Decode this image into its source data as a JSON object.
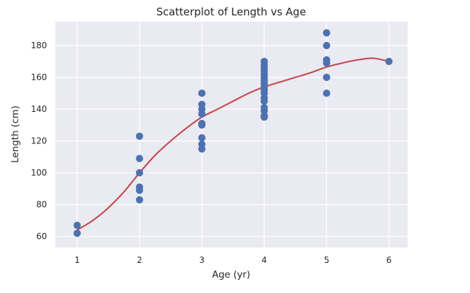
{
  "chart_data": {
    "type": "scatter",
    "title": "Scatterplot of Length vs Age",
    "xlabel": "Age (yr)",
    "ylabel": "Length (cm)",
    "xlim": [
      0.65,
      6.3
    ],
    "ylim": [
      53,
      195
    ],
    "x_ticks": [
      1,
      2,
      3,
      4,
      5,
      6
    ],
    "y_ticks": [
      60,
      80,
      100,
      120,
      140,
      160,
      180
    ],
    "grid": true,
    "colors": {
      "background": "#eaeaf2",
      "grid": "#ffffff",
      "points": "#4c72b0",
      "fit_line": "#c44e52"
    },
    "series": [
      {
        "type": "scatter",
        "points": [
          [
            1,
            67
          ],
          [
            1,
            62
          ],
          [
            2,
            123
          ],
          [
            2,
            109
          ],
          [
            2,
            100
          ],
          [
            2,
            91
          ],
          [
            2,
            89
          ],
          [
            2,
            83
          ],
          [
            3,
            150
          ],
          [
            3,
            143
          ],
          [
            3,
            140
          ],
          [
            3,
            137
          ],
          [
            3,
            131
          ],
          [
            3,
            130
          ],
          [
            3,
            122
          ],
          [
            3,
            118
          ],
          [
            3,
            115
          ],
          [
            4,
            170
          ],
          [
            4,
            168
          ],
          [
            4,
            166
          ],
          [
            4,
            164
          ],
          [
            4,
            162
          ],
          [
            4,
            160
          ],
          [
            4,
            158
          ],
          [
            4,
            156
          ],
          [
            4,
            154
          ],
          [
            4,
            152
          ],
          [
            4,
            150
          ],
          [
            4,
            147
          ],
          [
            4,
            145
          ],
          [
            4,
            141
          ],
          [
            4,
            139
          ],
          [
            4,
            136
          ],
          [
            4,
            135
          ],
          [
            5,
            188
          ],
          [
            5,
            180
          ],
          [
            5,
            171
          ],
          [
            5,
            169
          ],
          [
            5,
            160
          ],
          [
            5,
            150
          ],
          [
            6,
            170
          ]
        ]
      },
      {
        "type": "line",
        "points": [
          [
            1,
            64
          ],
          [
            1.25,
            70
          ],
          [
            1.5,
            78
          ],
          [
            1.75,
            88
          ],
          [
            2,
            100
          ],
          [
            2.25,
            111
          ],
          [
            2.5,
            120
          ],
          [
            2.75,
            128
          ],
          [
            3,
            135
          ],
          [
            3.25,
            140
          ],
          [
            3.5,
            145
          ],
          [
            3.75,
            150
          ],
          [
            4,
            154
          ],
          [
            4.25,
            157
          ],
          [
            4.5,
            160
          ],
          [
            4.75,
            163
          ],
          [
            5,
            166.5
          ],
          [
            5.25,
            169
          ],
          [
            5.5,
            171
          ],
          [
            5.75,
            172
          ],
          [
            6,
            170
          ]
        ]
      }
    ]
  }
}
